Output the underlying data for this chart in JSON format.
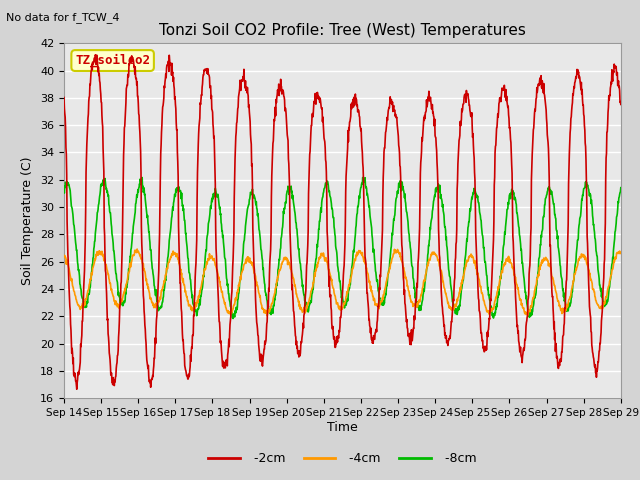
{
  "title": "Tonzi Soil CO2 Profile: Tree (West) Temperatures",
  "subtitle": "No data for f_TCW_4",
  "ylabel": "Soil Temperature (C)",
  "xlabel": "Time",
  "ylim": [
    16,
    42
  ],
  "xlim": [
    0,
    15
  ],
  "fig_facecolor": "#d4d4d4",
  "plot_facecolor": "#e8e8e8",
  "series": {
    "-2cm": {
      "color": "#cc0000",
      "linewidth": 1.2
    },
    "-4cm": {
      "color": "#ff9900",
      "linewidth": 1.2
    },
    "-8cm": {
      "color": "#00bb00",
      "linewidth": 1.2
    }
  },
  "legend_box": {
    "label": "TZ_soilco2",
    "facecolor": "#ffffcc",
    "edgecolor": "#cccc00",
    "textcolor": "#cc0000",
    "fontsize": 9
  },
  "xtick_labels": [
    "Sep 14",
    "Sep 15",
    "Sep 16",
    "Sep 17",
    "Sep 18",
    "Sep 19",
    "Sep 20",
    "Sep 21",
    "Sep 22",
    "Sep 23",
    "Sep 24",
    "Sep 25",
    "Sep 26",
    "Sep 27",
    "Sep 28",
    "Sep 29"
  ],
  "ytick_values": [
    16,
    18,
    20,
    22,
    24,
    26,
    28,
    30,
    32,
    34,
    36,
    38,
    40,
    42
  ],
  "figsize": [
    6.4,
    4.8
  ],
  "dpi": 100
}
